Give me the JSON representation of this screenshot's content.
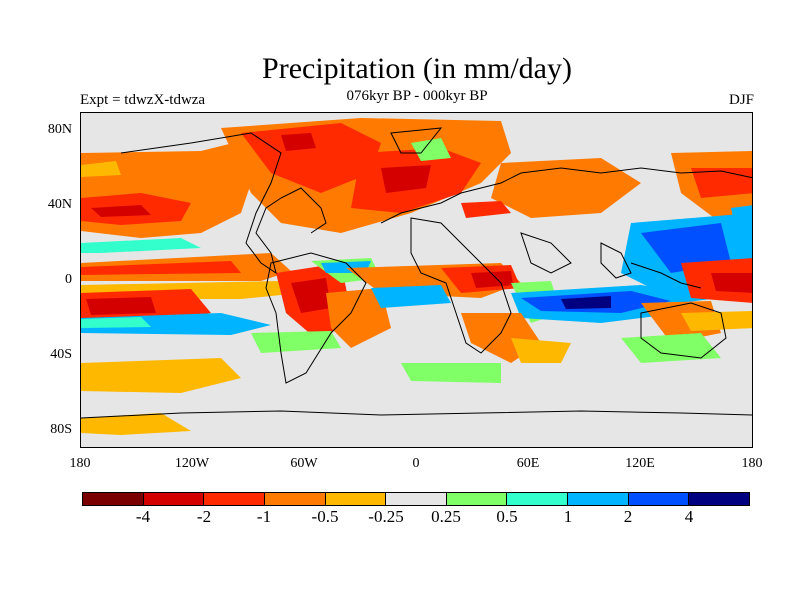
{
  "header": {
    "title": "Precipitation (in mm/day)",
    "experiment": "Expt = tdwzX-tdwza",
    "period": "076kyr BP - 000kyr BP",
    "season": "DJF"
  },
  "axes": {
    "y_labels": [
      "80N",
      "40N",
      "0",
      "40S",
      "80S"
    ],
    "x_labels": [
      "180",
      "120W",
      "60W",
      "0",
      "60E",
      "120E",
      "180"
    ]
  },
  "colorbar": {
    "colors": [
      "#7a0000",
      "#d40000",
      "#ff2a00",
      "#ff7a00",
      "#ffb800",
      "#e6e6e6",
      "#80ff66",
      "#33ffcc",
      "#00b4ff",
      "#0050ff",
      "#000080"
    ],
    "labels": [
      "-4",
      "-2",
      "-1",
      "-0.5",
      "-0.25",
      "0.25",
      "0.5",
      "1",
      "2",
      "4"
    ]
  }
}
